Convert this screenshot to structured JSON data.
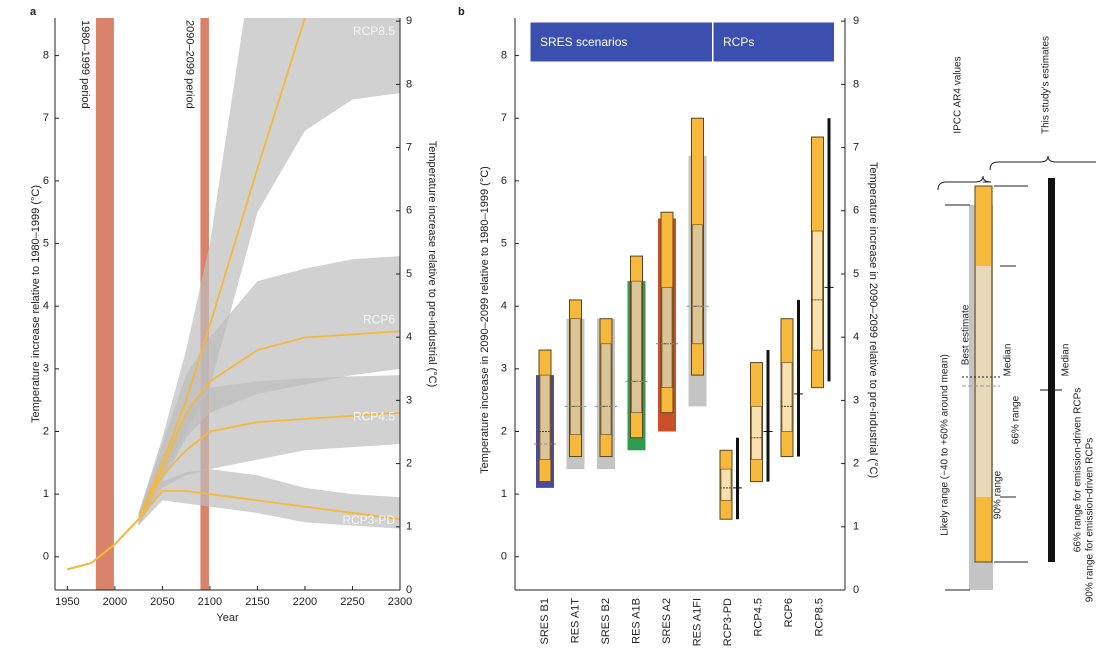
{
  "chart_data": [
    {
      "type": "line",
      "panel_label": "a",
      "xlabel": "Year",
      "ylabel": "Temperature increase relative to 1980–1999 (°C)",
      "y2label": "Temperature increase relative to pre-industrial (°C)",
      "x": [
        1950,
        1975,
        2000,
        2025,
        2050,
        2075,
        2100,
        2150,
        2200,
        2250,
        2300
      ],
      "xlim": [
        1937,
        2300
      ],
      "xticks": [
        1950,
        2000,
        2050,
        2100,
        2150,
        2200,
        2250,
        2300
      ],
      "ylim": [
        -0.53,
        8.6
      ],
      "yticks": [
        0,
        1,
        2,
        3,
        4,
        5,
        6,
        7,
        8
      ],
      "y2lim": [
        0,
        9.05
      ],
      "y2ticks": [
        0,
        1,
        2,
        3,
        4,
        5,
        6,
        7,
        8,
        9
      ],
      "periods": [
        {
          "label": "1980–1999 period",
          "start": 1980,
          "end": 1999,
          "color": "#d9836b"
        },
        {
          "label": "2090–2099 period",
          "start": 2090,
          "end": 2099,
          "color": "#d9836b"
        }
      ],
      "series": [
        {
          "name": "RCP8.5",
          "color": "#f5b83d",
          "band_color": "#bdbdbd",
          "values": [
            -0.2,
            -0.1,
            0.2,
            0.6,
            1.5,
            2.5,
            3.7,
            6.2,
            8.6,
            null,
            null
          ],
          "low": [
            null,
            null,
            null,
            0.5,
            1.3,
            2.0,
            2.7,
            5.5,
            6.8,
            7.3,
            7.4
          ],
          "high": [
            null,
            null,
            null,
            0.7,
            1.9,
            3.3,
            5.0,
            10.0,
            12.0,
            13.0,
            13.5
          ]
        },
        {
          "name": "RCP6",
          "color": "#f5b83d",
          "band_color": "#bdbdbd",
          "values": [
            -0.2,
            -0.1,
            0.2,
            0.6,
            1.4,
            2.3,
            2.8,
            3.3,
            3.5,
            3.55,
            3.6
          ],
          "low": [
            null,
            null,
            null,
            0.5,
            1.2,
            1.9,
            2.3,
            2.6,
            2.75,
            2.9,
            3.0
          ],
          "high": [
            null,
            null,
            null,
            0.7,
            1.8,
            2.9,
            3.5,
            4.4,
            4.6,
            4.75,
            4.8
          ]
        },
        {
          "name": "RCP4.5",
          "color": "#f5b83d",
          "band_color": "#bdbdbd",
          "values": [
            -0.2,
            -0.1,
            0.2,
            0.6,
            1.3,
            1.7,
            2.0,
            2.15,
            2.2,
            2.25,
            2.3
          ],
          "low": [
            null,
            null,
            null,
            0.5,
            1.1,
            1.3,
            1.4,
            1.55,
            1.7,
            1.75,
            1.8
          ],
          "high": [
            null,
            null,
            null,
            0.7,
            1.6,
            2.3,
            2.7,
            2.8,
            2.85,
            2.88,
            2.9
          ]
        },
        {
          "name": "RCP3-PD",
          "color": "#f5b83d",
          "band_color": "#bdbdbd",
          "values": [
            -0.2,
            -0.1,
            0.2,
            0.6,
            1.05,
            1.05,
            1.0,
            0.9,
            0.8,
            0.7,
            0.6
          ],
          "low": [
            null,
            null,
            null,
            0.5,
            0.9,
            0.85,
            0.8,
            0.7,
            0.55,
            0.5,
            0.45
          ],
          "high": [
            null,
            null,
            null,
            0.7,
            1.2,
            1.35,
            1.4,
            1.3,
            1.1,
            1.0,
            0.95
          ]
        }
      ]
    },
    {
      "type": "range",
      "panel_label": "b",
      "ylabel": "Temperature increase in 2090–2099 relative to 1980–1999 (°C)",
      "y2label": "Temperature increase in 2090–2099 relative to pre-industrial (°C)",
      "ylim": [
        -0.53,
        8.6
      ],
      "yticks": [
        0,
        1,
        2,
        3,
        4,
        5,
        6,
        7,
        8
      ],
      "y2lim": [
        0,
        9.05
      ],
      "y2ticks": [
        0,
        1,
        2,
        3,
        4,
        5,
        6,
        7,
        8,
        9
      ],
      "header_color": "#3a4fae",
      "groups": [
        {
          "label": "SRES scenarios",
          "categories": [
            {
              "name": "SRES B1",
              "p90": [
                1.2,
                3.3
              ],
              "p66": [
                1.55,
                2.9
              ],
              "median": 2.0,
              "ar4": [
                1.1,
                2.9
              ],
              "ar4_best": 1.8,
              "ar4_color": "#4b4aa0"
            },
            {
              "name": "RES A1T",
              "p90": [
                1.6,
                4.1
              ],
              "p66": [
                1.95,
                3.8
              ],
              "median": 2.4,
              "ar4": [
                1.4,
                3.8
              ],
              "ar4_best": 2.4,
              "ar4_color": "#c4c4c4"
            },
            {
              "name": "SRES B2",
              "p90": [
                1.6,
                3.8
              ],
              "p66": [
                1.95,
                3.4
              ],
              "median": 2.4,
              "ar4": [
                1.4,
                3.8
              ],
              "ar4_best": 2.4,
              "ar4_color": "#c4c4c4"
            },
            {
              "name": "RES A1B",
              "p90": [
                1.9,
                4.8
              ],
              "p66": [
                2.3,
                4.4
              ],
              "median": 2.8,
              "ar4": [
                1.7,
                4.4
              ],
              "ar4_best": 2.8,
              "ar4_color": "#2e9b50"
            },
            {
              "name": "SRES A2",
              "p90": [
                2.3,
                5.5
              ],
              "p66": [
                2.7,
                4.3
              ],
              "median": 3.4,
              "ar4": [
                2.0,
                5.4
              ],
              "ar4_best": 3.4,
              "ar4_color": "#c9502a"
            },
            {
              "name": "RES A1FI",
              "p90": [
                2.9,
                7.0
              ],
              "p66": [
                3.4,
                5.3
              ],
              "median": 4.0,
              "ar4": [
                2.4,
                6.4
              ],
              "ar4_best": 4.0,
              "ar4_color": "#c4c4c4"
            }
          ]
        },
        {
          "label": "RCPs",
          "categories": [
            {
              "name": "RCP3-PD",
              "p90": [
                0.6,
                1.7
              ],
              "p66": [
                0.9,
                1.4
              ],
              "median": 1.1,
              "emis": [
                0.6,
                1.9
              ],
              "emis_median": 1.1
            },
            {
              "name": "RCP4.5",
              "p90": [
                1.2,
                3.1
              ],
              "p66": [
                1.55,
                2.4
              ],
              "median": 1.9,
              "emis": [
                1.2,
                3.3
              ],
              "emis_median": 2.0
            },
            {
              "name": "RCP6",
              "p90": [
                1.6,
                3.8
              ],
              "p66": [
                2.0,
                3.1
              ],
              "median": 2.4,
              "emis": [
                1.6,
                4.1
              ],
              "emis_median": 2.6
            },
            {
              "name": "RCP8.5",
              "p90": [
                2.7,
                6.7
              ],
              "p66": [
                3.3,
                5.2
              ],
              "median": 4.1,
              "emis": [
                2.8,
                7.0
              ],
              "emis_median": 4.3
            }
          ]
        }
      ]
    }
  ],
  "legend_panel": {
    "headers": [
      "IPCC AR4 values",
      "This study's estimates"
    ],
    "labels": {
      "likely": "Likely range (−40 to +60% around mean)",
      "best": "Best estimate",
      "median": "Median",
      "range66": "66% range",
      "range90": "90% range",
      "median_emis": "Median",
      "range66_emis": "66% range for emission-driven RCPs",
      "range90_emis": "90% range for emission-driven RCPs"
    }
  }
}
